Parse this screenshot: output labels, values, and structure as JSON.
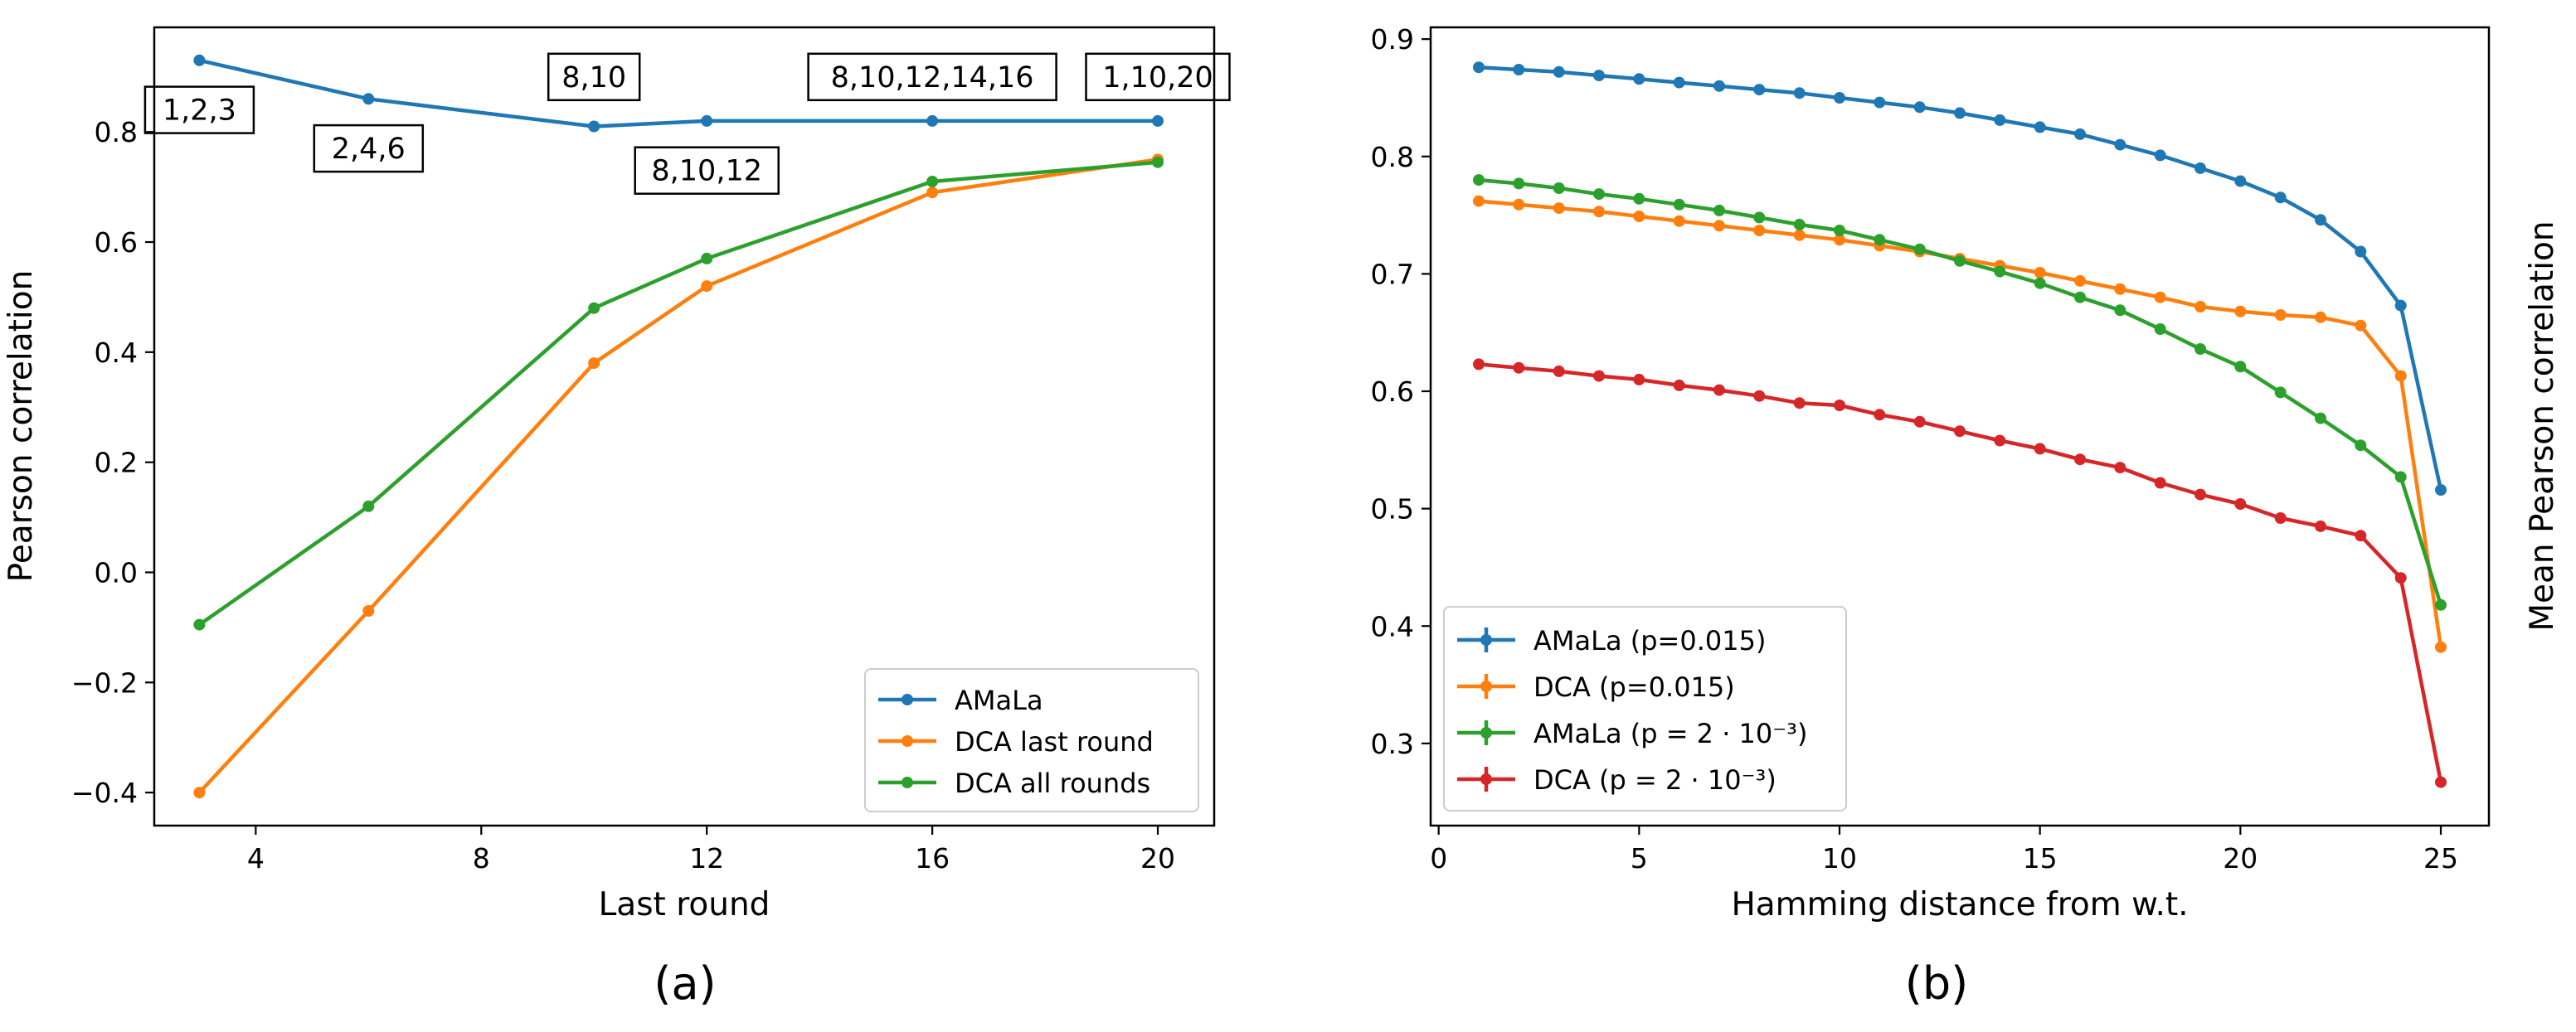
{
  "chart_data": [
    {
      "type": "line",
      "panel_label": "(a)",
      "xlabel": "Last round",
      "ylabel": "Pearson correlation",
      "xlim": [
        2.2,
        21
      ],
      "ylim": [
        -0.46,
        0.99
      ],
      "xticks": [
        4,
        8,
        12,
        16,
        20
      ],
      "yticks": [
        -0.4,
        -0.2,
        0.0,
        0.2,
        0.4,
        0.6,
        0.8
      ],
      "ytick_labels": [
        "−0.4",
        "−0.2",
        "0.0",
        "0.2",
        "0.4",
        "0.6",
        "0.8"
      ],
      "grid": false,
      "legend_loc": "lower-right",
      "x": [
        3,
        6,
        10,
        12,
        16,
        20
      ],
      "series": [
        {
          "name": "AMaLa",
          "color": "#1f77b4",
          "values": [
            0.93,
            0.86,
            0.81,
            0.82,
            0.82,
            0.82
          ]
        },
        {
          "name": "DCA last round",
          "color": "#ff7f0e",
          "values": [
            -0.4,
            -0.07,
            0.38,
            0.52,
            0.69,
            0.75
          ]
        },
        {
          "name": "DCA all rounds",
          "color": "#2ca02c",
          "values": [
            -0.095,
            0.12,
            0.48,
            0.57,
            0.71,
            0.745
          ]
        }
      ],
      "annotations": [
        {
          "text": "1,2,3",
          "x": 3,
          "y": 0.84
        },
        {
          "text": "2,4,6",
          "x": 6,
          "y": 0.77
        },
        {
          "text": "8,10",
          "x": 10,
          "y": 0.9
        },
        {
          "text": "8,10,12",
          "x": 12,
          "y": 0.73
        },
        {
          "text": "8,10,12,14,16",
          "x": 16,
          "y": 0.9
        },
        {
          "text": "1,10,20",
          "x": 20,
          "y": 0.9
        }
      ]
    },
    {
      "type": "line",
      "panel_label": "(b)",
      "xlabel": "Hamming distance from w.t.",
      "ylabel": "Mean Pearson correlation",
      "xlim": [
        -0.2,
        26.2
      ],
      "ylim": [
        0.23,
        0.91
      ],
      "xticks": [
        0,
        5,
        10,
        15,
        20,
        25
      ],
      "yticks": [
        0.3,
        0.4,
        0.5,
        0.6,
        0.7,
        0.8,
        0.9
      ],
      "grid": false,
      "legend_loc": "lower-left",
      "x": [
        1,
        2,
        3,
        4,
        5,
        6,
        7,
        8,
        9,
        10,
        11,
        12,
        13,
        14,
        15,
        16,
        17,
        18,
        19,
        20,
        21,
        22,
        23,
        24,
        25
      ],
      "series": [
        {
          "name": "AMaLa (p=0.015)",
          "color": "#1f77b4",
          "values": [
            0.876,
            0.874,
            0.872,
            0.869,
            0.866,
            0.863,
            0.86,
            0.857,
            0.854,
            0.85,
            0.846,
            0.842,
            0.837,
            0.831,
            0.825,
            0.819,
            0.81,
            0.801,
            0.79,
            0.779,
            0.765,
            0.746,
            0.719,
            0.673,
            0.516
          ]
        },
        {
          "name": "DCA (p=0.015)",
          "color": "#ff7f0e",
          "values": [
            0.762,
            0.759,
            0.756,
            0.753,
            0.749,
            0.745,
            0.741,
            0.737,
            0.733,
            0.729,
            0.724,
            0.719,
            0.713,
            0.707,
            0.701,
            0.694,
            0.687,
            0.68,
            0.672,
            0.668,
            0.665,
            0.663,
            0.656,
            0.613,
            0.382
          ]
        },
        {
          "name": "AMaLa (p = 2 · 10⁻³)",
          "color": "#2ca02c",
          "values": [
            0.78,
            0.777,
            0.773,
            0.768,
            0.764,
            0.759,
            0.754,
            0.748,
            0.742,
            0.737,
            0.729,
            0.721,
            0.711,
            0.702,
            0.692,
            0.68,
            0.669,
            0.653,
            0.636,
            0.621,
            0.599,
            0.577,
            0.554,
            0.527,
            0.418
          ]
        },
        {
          "name": "DCA (p = 2 · 10⁻³)",
          "color": "#d62728",
          "values": [
            0.623,
            0.62,
            0.617,
            0.613,
            0.61,
            0.605,
            0.601,
            0.596,
            0.59,
            0.588,
            0.58,
            0.574,
            0.566,
            0.558,
            0.551,
            0.542,
            0.535,
            0.522,
            0.512,
            0.504,
            0.492,
            0.485,
            0.477,
            0.441,
            0.267
          ]
        }
      ]
    }
  ]
}
